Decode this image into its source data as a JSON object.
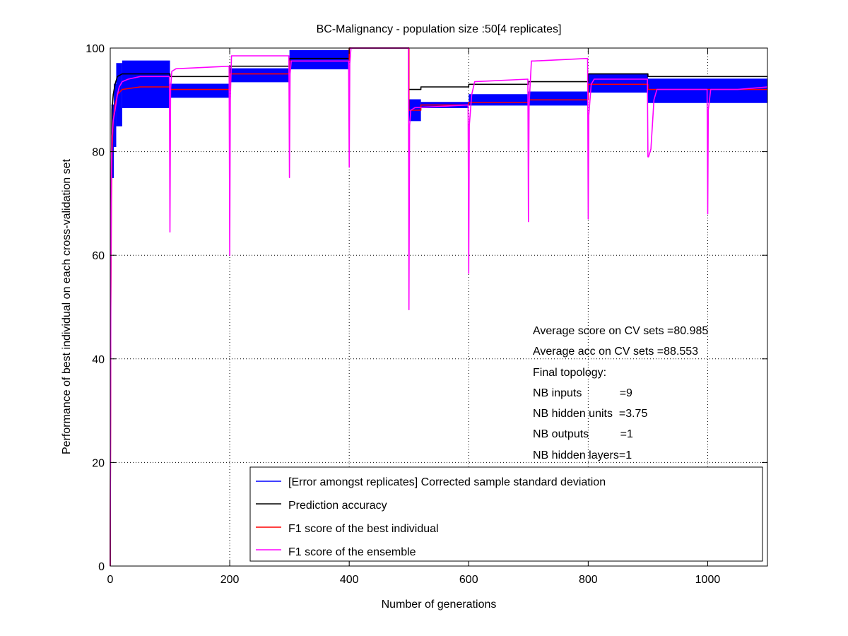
{
  "chart_data": {
    "type": "line",
    "title": "BC-Malignancy - population size :50[4 replicates]",
    "xlabel": "Number of generations",
    "ylabel": "Performance of best individual on each cross-validation set",
    "xlim": [
      0,
      1100
    ],
    "ylim": [
      0,
      100
    ],
    "xticks": [
      0,
      200,
      400,
      600,
      800,
      1000
    ],
    "yticks": [
      0,
      20,
      40,
      60,
      80,
      100
    ],
    "grid": true,
    "legend_position": "bottom-right",
    "annotations": [
      "Average score on CV sets =80.985",
      "Average acc on CV sets =88.553",
      "Final topology:",
      "NB inputs            =9",
      "NB hidden units  =3.75",
      "NB outputs          =1",
      "NB hidden layers=1"
    ],
    "series": [
      {
        "name": "[Error amongst replicates] Corrected sample standard deviation",
        "kind": "errorband",
        "color": "#0000ff",
        "bands": [
          {
            "x": [
              2,
              6
            ],
            "low": 75,
            "high": 89
          },
          {
            "x": [
              6,
              10
            ],
            "low": 81,
            "high": 93
          },
          {
            "x": [
              10,
              20
            ],
            "low": 85,
            "high": 97
          },
          {
            "x": [
              20,
              100
            ],
            "low": 88.5,
            "high": 97.5
          },
          {
            "x": [
              100,
              200
            ],
            "low": 90.5,
            "high": 93
          },
          {
            "x": [
              200,
              300
            ],
            "low": 93.5,
            "high": 96
          },
          {
            "x": [
              300,
              400
            ],
            "low": 96,
            "high": 99.5
          },
          {
            "x": [
              400,
              500
            ],
            "low": 100,
            "high": 100
          },
          {
            "x": [
              500,
              520
            ],
            "low": 86,
            "high": 90
          },
          {
            "x": [
              520,
              600
            ],
            "low": 88.5,
            "high": 89.5
          },
          {
            "x": [
              600,
              700
            ],
            "low": 89,
            "high": 91
          },
          {
            "x": [
              700,
              800
            ],
            "low": 89,
            "high": 91.5
          },
          {
            "x": [
              800,
              900
            ],
            "low": 91.5,
            "high": 95
          },
          {
            "x": [
              900,
              1100
            ],
            "low": 89.5,
            "high": 94
          }
        ]
      },
      {
        "name": "Prediction accuracy",
        "color": "#000000",
        "x": [
          0,
          1,
          2,
          3,
          5,
          8,
          12,
          20,
          100,
          100,
          200,
          200,
          300,
          300,
          400,
          400,
          500,
          500,
          520,
          520,
          600,
          600,
          700,
          700,
          800,
          800,
          900,
          900,
          1100
        ],
        "y": [
          0,
          60,
          80,
          88,
          91,
          93,
          94.5,
          95,
          95,
          94.5,
          94.5,
          96.5,
          96.5,
          98,
          98,
          100,
          100,
          92,
          92,
          92.5,
          92.5,
          93,
          93,
          93.5,
          93.5,
          95,
          95,
          94.5,
          94.5
        ]
      },
      {
        "name": "F1 score of the best individual",
        "color": "#ff0000",
        "x": [
          0,
          1,
          2,
          3,
          5,
          8,
          12,
          20,
          50,
          100,
          100,
          200,
          200,
          300,
          300,
          400,
          400,
          500,
          500,
          520,
          520,
          600,
          600,
          700,
          700,
          800,
          800,
          900,
          900,
          1100
        ],
        "y": [
          0,
          50,
          70,
          80,
          86,
          89,
          91,
          92,
          92.5,
          92.5,
          92,
          92,
          95,
          95,
          97.5,
          97.5,
          100,
          100,
          88,
          88,
          89,
          89,
          89.5,
          89.5,
          90,
          90,
          93,
          93,
          92,
          92
        ]
      },
      {
        "name": "F1 score of the ensemble",
        "color": "#ff00ff",
        "x": [
          0,
          1,
          2,
          3,
          5,
          8,
          12,
          15,
          20,
          30,
          50,
          80,
          99,
          100,
          101,
          103,
          110,
          199,
          200,
          201,
          203,
          299,
          300,
          301,
          303,
          399,
          400,
          401,
          403,
          499,
          500,
          501,
          503,
          510,
          599,
          600,
          601,
          605,
          610,
          699,
          700,
          701,
          705,
          710,
          799,
          800,
          801,
          805,
          810,
          899,
          900,
          901,
          905,
          910,
          915,
          999,
          1000,
          1001,
          1005,
          1010,
          1050,
          1100
        ],
        "y": [
          0,
          55,
          78,
          83,
          86,
          88,
          91,
          92.5,
          93.5,
          94,
          94.5,
          94.5,
          94.5,
          64.5,
          92,
          95.5,
          96,
          96.5,
          60,
          90,
          98.5,
          98.5,
          75,
          95,
          97.5,
          97.5,
          77,
          97,
          100,
          100,
          49.5,
          85,
          88,
          88.5,
          89,
          56.5,
          85,
          91,
          93.5,
          94,
          66.5,
          89,
          97.5,
          97.5,
          98,
          67,
          87,
          93,
          94,
          94,
          79,
          79,
          80.5,
          90,
          92,
          92,
          68,
          88,
          92,
          92,
          92,
          92.5
        ]
      }
    ]
  }
}
